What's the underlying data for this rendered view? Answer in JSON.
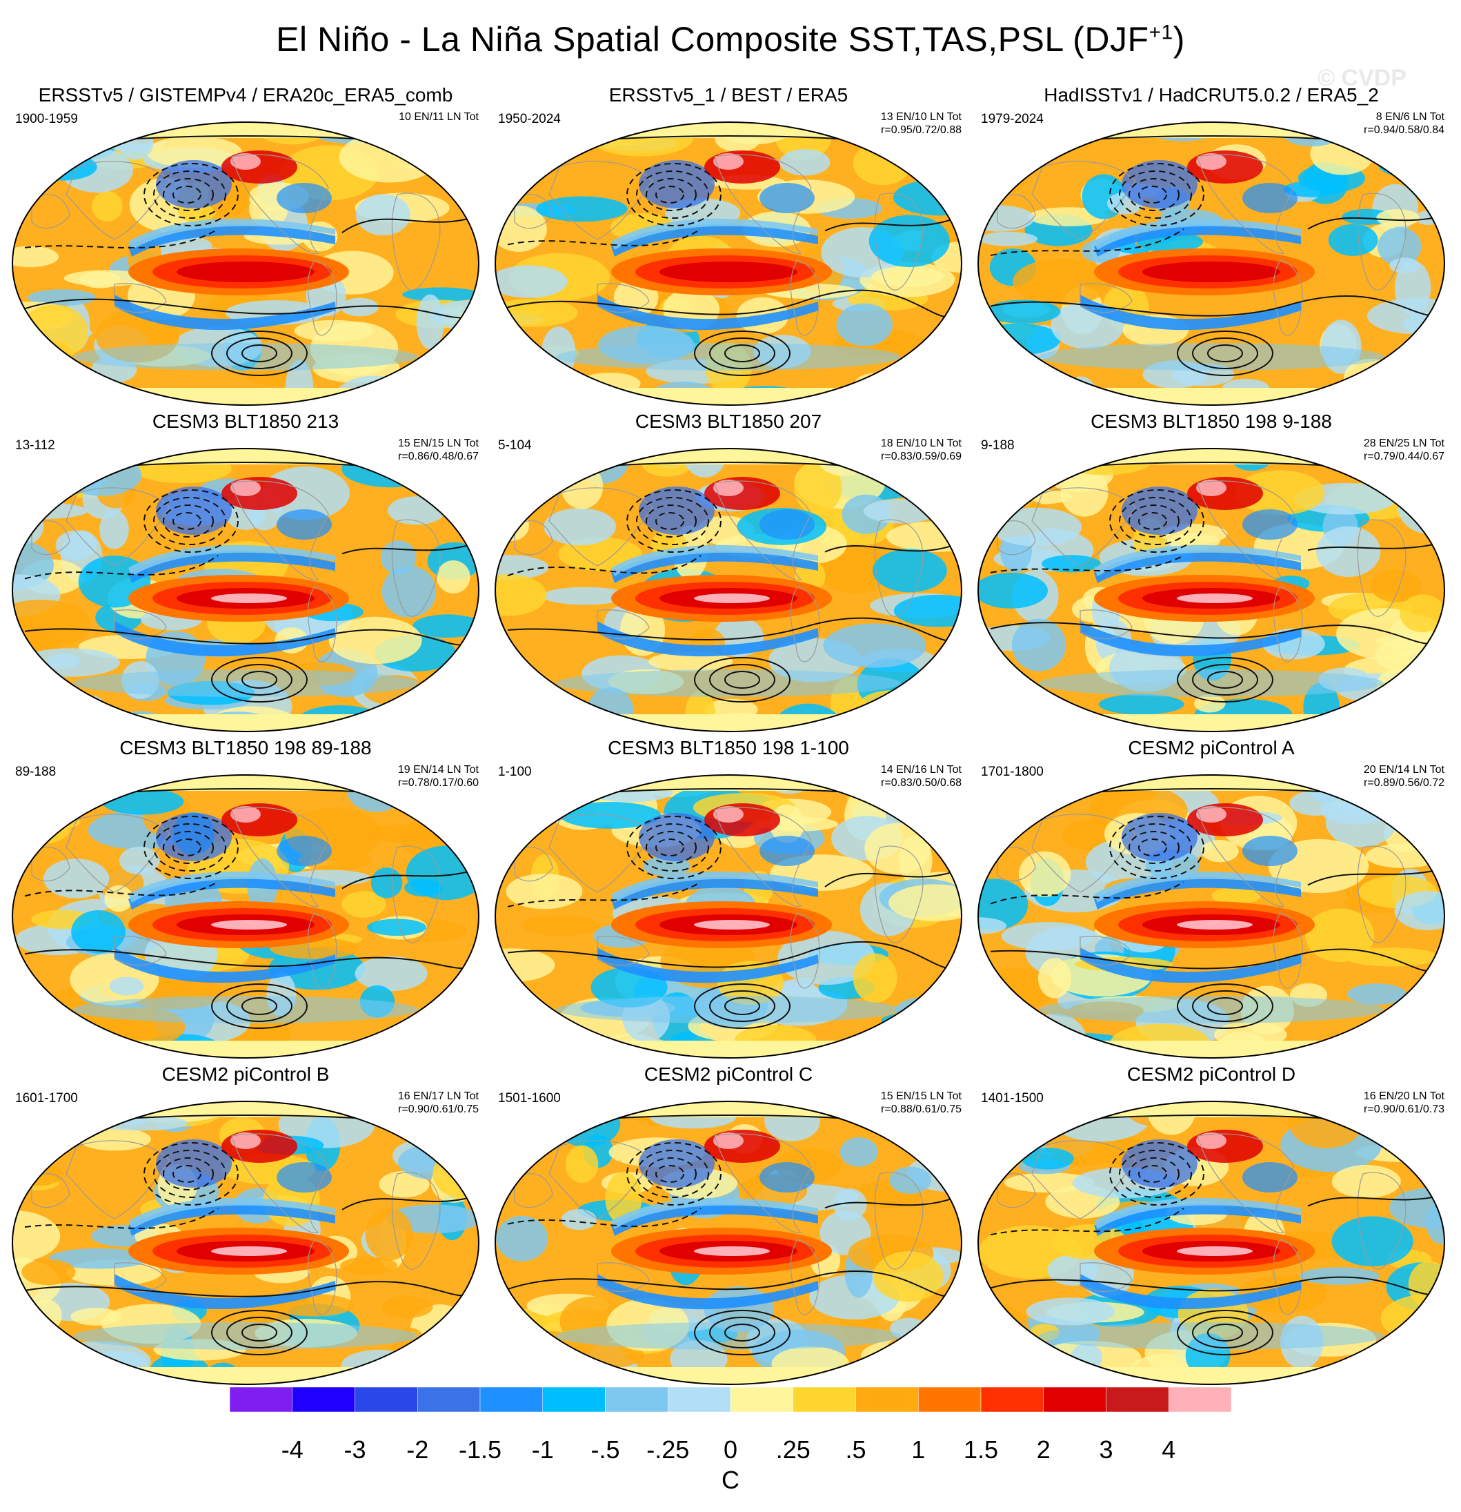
{
  "title": {
    "text": "El Niño - La Niña Spatial Composite SST,TAS,PSL (DJF",
    "superscript": "+1",
    "closing": ")"
  },
  "watermark": "© CVDP",
  "panels": [
    {
      "title": "ERSSTv5 / GISTEMPv4 / ERA20c_ERA5_comb",
      "years": "1900-1959",
      "counts": "10 EN/11 LN Tot",
      "r": ""
    },
    {
      "title": "ERSSTv5_1 / BEST / ERA5",
      "years": "1950-2024",
      "counts": "13 EN/10 LN Tot",
      "r": "r=0.95/0.72/0.88"
    },
    {
      "title": "HadISSTv1 / HadCRUT5.0.2 / ERA5_2",
      "years": "1979-2024",
      "counts": "8 EN/6 LN Tot",
      "r": "r=0.94/0.58/0.84"
    },
    {
      "title": "CESM3 BLT1850 213",
      "years": "13-112",
      "counts": "15 EN/15 LN Tot",
      "r": "r=0.86/0.48/0.67"
    },
    {
      "title": "CESM3 BLT1850 207",
      "years": "5-104",
      "counts": "18 EN/10 LN Tot",
      "r": "r=0.83/0.59/0.69"
    },
    {
      "title": "CESM3 BLT1850 198 9-188",
      "years": "9-188",
      "counts": "28 EN/25 LN Tot",
      "r": "r=0.79/0.44/0.67"
    },
    {
      "title": "CESM3 BLT1850 198 89-188",
      "years": "89-188",
      "counts": "19 EN/14 LN Tot",
      "r": "r=0.78/0.17/0.60"
    },
    {
      "title": "CESM3 BLT1850 198 1-100",
      "years": "1-100",
      "counts": "14 EN/16 LN Tot",
      "r": "r=0.83/0.50/0.68"
    },
    {
      "title": "CESM2 piControl A",
      "years": "1701-1800",
      "counts": "20 EN/14 LN Tot",
      "r": "r=0.89/0.56/0.72"
    },
    {
      "title": "CESM2 piControl B",
      "years": "1601-1700",
      "counts": "16 EN/17 LN Tot",
      "r": "r=0.90/0.61/0.75"
    },
    {
      "title": "CESM2 piControl C",
      "years": "1501-1600",
      "counts": "15 EN/15 LN Tot",
      "r": "r=0.88/0.61/0.75"
    },
    {
      "title": "CESM2 piControl D",
      "years": "1401-1500",
      "counts": "16 EN/20 LN Tot",
      "r": "r=0.90/0.61/0.73"
    }
  ],
  "colorbar": {
    "colors": [
      "#7f1fef",
      "#1f00ff",
      "#2a48e8",
      "#3a72e8",
      "#1e90ff",
      "#00bfff",
      "#7ec8f0",
      "#b2dff5",
      "#fff59a",
      "#ffd530",
      "#ffaa10",
      "#ff7500",
      "#ff3000",
      "#e00000",
      "#c81a1a",
      "#ffb0b8"
    ],
    "labels": [
      "-4",
      "-3",
      "-2",
      "-1.5",
      "-1",
      "-.5",
      "-.25",
      "0",
      ".25",
      ".5",
      "1",
      "1.5",
      "2",
      "3",
      "4"
    ],
    "units": "C"
  }
}
